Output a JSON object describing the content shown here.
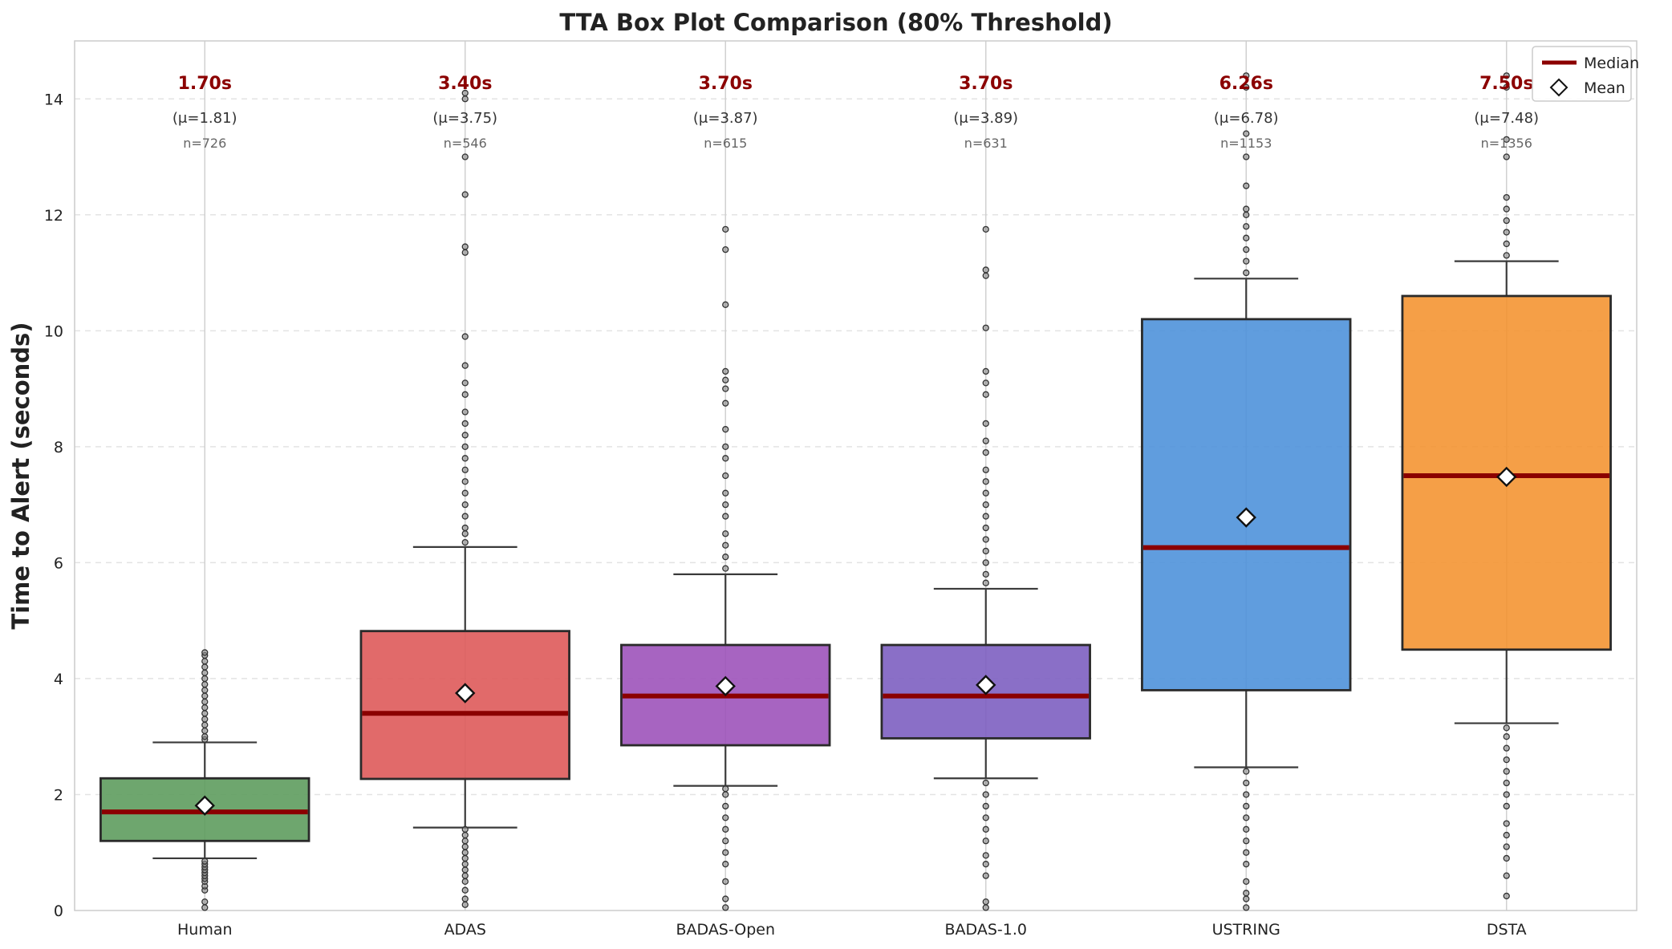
{
  "chart_data": {
    "type": "box",
    "title": "TTA Box Plot Comparison (80% Threshold)",
    "xlabel": "",
    "ylabel": "Time to Alert (seconds)",
    "ylim": [
      0,
      15
    ],
    "yticks": [
      0,
      2,
      4,
      6,
      8,
      10,
      12,
      14
    ],
    "grid": true,
    "legend": {
      "position": "top-right",
      "entries": [
        {
          "label": "Median",
          "marker": "line",
          "color": "#8b0000"
        },
        {
          "label": "Mean",
          "marker": "diamond",
          "color": "#ffffff"
        }
      ]
    },
    "categories": [
      "Human",
      "ADAS",
      "BADAS-Open",
      "BADAS-1.0",
      "USTRING",
      "DSTA"
    ],
    "series": [
      {
        "name": "Human",
        "color": "#5a9a5a",
        "q1": 1.2,
        "median": 1.7,
        "q3": 2.28,
        "whisker_low": 0.9,
        "whisker_high": 2.9,
        "mean": 1.81,
        "n": 726,
        "median_label": "1.70s",
        "mean_label": "(μ=1.81)",
        "n_label": "n=726",
        "outliers": [
          0.05,
          0.15,
          0.35,
          0.42,
          0.5,
          0.55,
          0.6,
          0.65,
          0.7,
          0.75,
          0.8,
          0.85,
          2.95,
          3.0,
          3.1,
          3.2,
          3.3,
          3.4,
          3.5,
          3.6,
          3.7,
          3.8,
          3.9,
          4.0,
          4.1,
          4.2,
          4.3,
          4.4,
          4.45
        ]
      },
      {
        "name": "ADAS",
        "color": "#dd5555",
        "q1": 2.27,
        "median": 3.4,
        "q3": 4.82,
        "whisker_low": 1.43,
        "whisker_high": 6.27,
        "mean": 3.75,
        "n": 546,
        "median_label": "3.40s",
        "mean_label": "(μ=3.75)",
        "n_label": "n=546",
        "outliers": [
          0.1,
          0.2,
          0.35,
          0.5,
          0.6,
          0.7,
          0.8,
          0.9,
          1.0,
          1.1,
          1.2,
          1.3,
          1.4,
          6.35,
          6.5,
          6.6,
          6.8,
          7.0,
          7.2,
          7.4,
          7.6,
          7.8,
          8.0,
          8.2,
          8.4,
          8.6,
          8.9,
          9.1,
          9.4,
          9.9,
          11.35,
          11.45,
          12.35,
          13.0,
          14.0,
          14.1
        ]
      },
      {
        "name": "BADAS-Open",
        "color": "#9b4fb8",
        "q1": 2.85,
        "median": 3.7,
        "q3": 4.58,
        "whisker_low": 2.15,
        "whisker_high": 5.8,
        "mean": 3.87,
        "n": 615,
        "median_label": "3.70s",
        "mean_label": "(μ=3.87)",
        "n_label": "n=615",
        "outliers": [
          0.05,
          0.2,
          0.5,
          0.8,
          1.0,
          1.2,
          1.4,
          1.6,
          1.8,
          2.0,
          2.1,
          5.9,
          6.1,
          6.3,
          6.5,
          6.8,
          7.0,
          7.2,
          7.5,
          7.8,
          8.0,
          8.3,
          8.75,
          9.0,
          9.15,
          9.3,
          10.45,
          11.4,
          11.75
        ]
      },
      {
        "name": "BADAS-1.0",
        "color": "#7a5bbf",
        "q1": 2.97,
        "median": 3.7,
        "q3": 4.58,
        "whisker_low": 2.28,
        "whisker_high": 5.55,
        "mean": 3.89,
        "n": 631,
        "median_label": "3.70s",
        "mean_label": "(μ=3.89)",
        "n_label": "n=631",
        "outliers": [
          0.05,
          0.15,
          0.6,
          0.8,
          0.95,
          1.2,
          1.4,
          1.6,
          1.8,
          2.0,
          2.2,
          5.65,
          5.8,
          6.0,
          6.2,
          6.4,
          6.6,
          6.8,
          7.0,
          7.2,
          7.4,
          7.6,
          7.9,
          8.1,
          8.4,
          8.9,
          9.1,
          9.3,
          10.05,
          10.95,
          11.05,
          11.75
        ]
      },
      {
        "name": "USTRING",
        "color": "#4a90d9",
        "q1": 3.8,
        "median": 6.26,
        "q3": 10.2,
        "whisker_low": 2.47,
        "whisker_high": 10.9,
        "mean": 6.78,
        "n": 1153,
        "median_label": "6.26s",
        "mean_label": "(μ=6.78)",
        "n_label": "n=1153",
        "outliers": [
          0.05,
          0.2,
          0.3,
          0.5,
          0.8,
          1.0,
          1.2,
          1.4,
          1.6,
          1.8,
          2.0,
          2.2,
          2.4,
          11.0,
          11.2,
          11.4,
          11.6,
          11.8,
          12.0,
          12.1,
          12.5,
          13.0,
          13.4,
          14.2,
          14.4
        ]
      },
      {
        "name": "DSTA",
        "color": "#f4922e",
        "q1": 4.5,
        "median": 7.5,
        "q3": 10.6,
        "whisker_low": 3.23,
        "whisker_high": 11.2,
        "mean": 7.48,
        "n": 1356,
        "median_label": "7.50s",
        "mean_label": "(μ=7.48)",
        "n_label": "n=1356",
        "outliers": [
          0.25,
          0.6,
          0.9,
          1.1,
          1.3,
          1.5,
          1.8,
          2.0,
          2.2,
          2.4,
          2.6,
          2.8,
          3.0,
          3.15,
          11.3,
          11.5,
          11.7,
          11.9,
          12.1,
          12.3,
          13.0,
          13.3,
          14.2,
          14.4
        ]
      }
    ]
  }
}
